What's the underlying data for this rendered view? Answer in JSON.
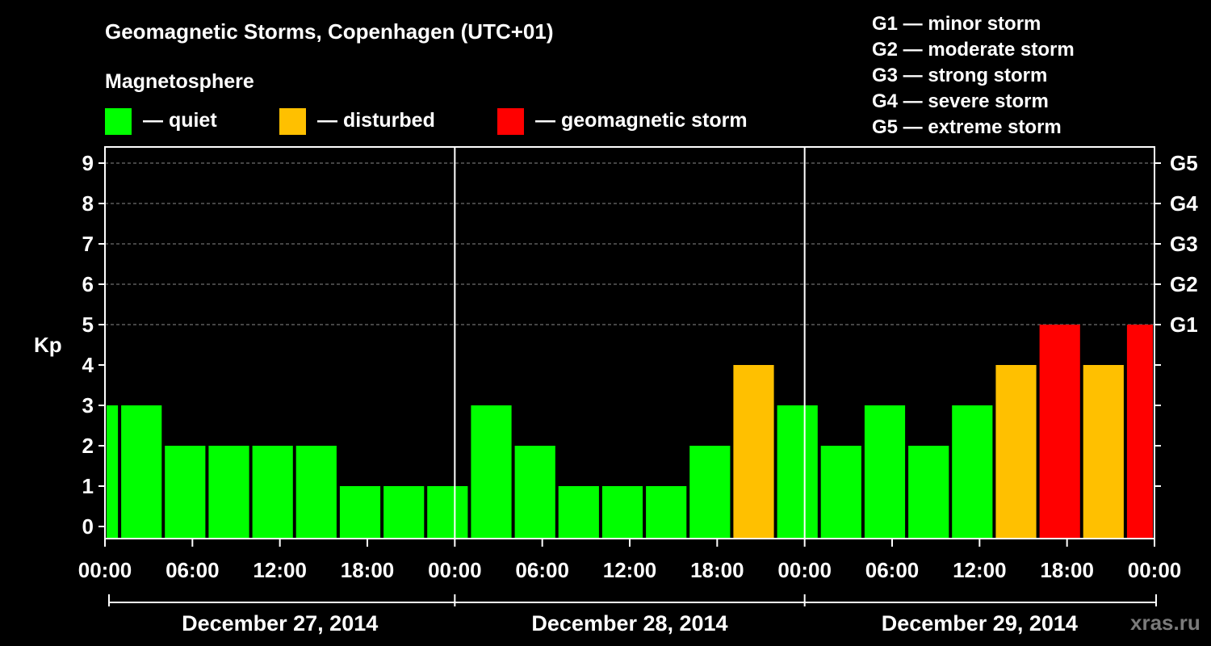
{
  "header": {
    "title": "Geomagnetic Storms, Copenhagen (UTC+01)",
    "subtitle": "Magnetosphere"
  },
  "legend": [
    {
      "label": "— quiet",
      "color": "#00ff00"
    },
    {
      "label": "— disturbed",
      "color": "#ffc000"
    },
    {
      "label": "— geomagnetic storm",
      "color": "#ff0000"
    }
  ],
  "storm_levels": [
    "G1 — minor storm",
    "G2 — moderate storm",
    "G3 — strong storm",
    "G4 — severe storm",
    "G5 — extreme storm"
  ],
  "watermark": "xras.ru",
  "colors": {
    "quiet": "#00ff00",
    "disturbed": "#ffc000",
    "storm": "#ff0000",
    "background": "#000000",
    "foreground": "#ffffff"
  },
  "chart_data": {
    "type": "bar",
    "ylabel": "Kp",
    "ylim": [
      0,
      9
    ],
    "y_ticks": [
      0,
      1,
      2,
      3,
      4,
      5,
      6,
      7,
      8,
      9
    ],
    "right_axis_labels": [
      {
        "kp": 5,
        "label": "G1"
      },
      {
        "kp": 6,
        "label": "G2"
      },
      {
        "kp": 7,
        "label": "G3"
      },
      {
        "kp": 8,
        "label": "G4"
      },
      {
        "kp": 9,
        "label": "G5"
      }
    ],
    "x_tick_labels": [
      "00:00",
      "06:00",
      "12:00",
      "18:00",
      "00:00",
      "06:00",
      "12:00",
      "18:00",
      "00:00",
      "06:00",
      "12:00",
      "18:00",
      "00:00"
    ],
    "dates": [
      "December 27, 2014",
      "December 28, 2014",
      "December 29, 2014"
    ],
    "grid": true,
    "bars": [
      {
        "start": "00:00",
        "end": "01:00",
        "kp": 3,
        "status": "quiet"
      },
      {
        "start": "01:00",
        "end": "04:00",
        "kp": 3,
        "status": "quiet"
      },
      {
        "start": "04:00",
        "end": "07:00",
        "kp": 2,
        "status": "quiet"
      },
      {
        "start": "07:00",
        "end": "10:00",
        "kp": 2,
        "status": "quiet"
      },
      {
        "start": "10:00",
        "end": "13:00",
        "kp": 2,
        "status": "quiet"
      },
      {
        "start": "13:00",
        "end": "16:00",
        "kp": 2,
        "status": "quiet"
      },
      {
        "start": "16:00",
        "end": "19:00",
        "kp": 1,
        "status": "quiet"
      },
      {
        "start": "19:00",
        "end": "22:00",
        "kp": 1,
        "status": "quiet"
      },
      {
        "start": "22:00",
        "end": "01:00",
        "kp": 1,
        "status": "quiet"
      },
      {
        "start": "01:00",
        "end": "04:00",
        "kp": 3,
        "status": "quiet"
      },
      {
        "start": "04:00",
        "end": "07:00",
        "kp": 2,
        "status": "quiet"
      },
      {
        "start": "07:00",
        "end": "10:00",
        "kp": 1,
        "status": "quiet"
      },
      {
        "start": "10:00",
        "end": "13:00",
        "kp": 1,
        "status": "quiet"
      },
      {
        "start": "13:00",
        "end": "16:00",
        "kp": 1,
        "status": "quiet"
      },
      {
        "start": "16:00",
        "end": "19:00",
        "kp": 2,
        "status": "quiet"
      },
      {
        "start": "19:00",
        "end": "22:00",
        "kp": 4,
        "status": "disturbed"
      },
      {
        "start": "22:00",
        "end": "01:00",
        "kp": 3,
        "status": "quiet"
      },
      {
        "start": "01:00",
        "end": "04:00",
        "kp": 2,
        "status": "quiet"
      },
      {
        "start": "04:00",
        "end": "07:00",
        "kp": 3,
        "status": "quiet"
      },
      {
        "start": "07:00",
        "end": "10:00",
        "kp": 2,
        "status": "quiet"
      },
      {
        "start": "10:00",
        "end": "13:00",
        "kp": 3,
        "status": "quiet"
      },
      {
        "start": "13:00",
        "end": "16:00",
        "kp": 4,
        "status": "disturbed"
      },
      {
        "start": "16:00",
        "end": "19:00",
        "kp": 5,
        "status": "storm"
      },
      {
        "start": "19:00",
        "end": "22:00",
        "kp": 4,
        "status": "disturbed"
      },
      {
        "start": "22:00",
        "end": "00:00",
        "kp": 5,
        "status": "storm"
      }
    ]
  }
}
